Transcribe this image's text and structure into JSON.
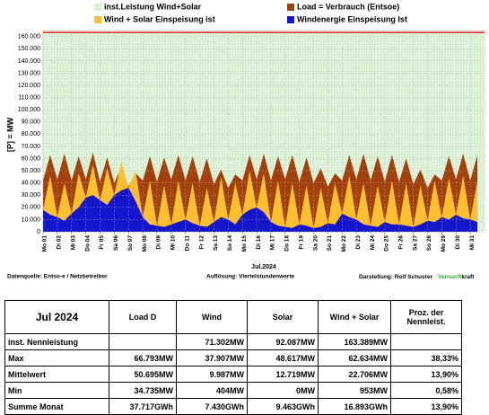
{
  "chart_data": {
    "type": "area",
    "ylabel": "[P] = MW",
    "xlabel": "Jul.2024",
    "xlim": [
      0,
      31
    ],
    "ylim": [
      0,
      165000
    ],
    "grid": true,
    "yticks": [
      0,
      {
        "value": 10000,
        "label": "10.000"
      },
      {
        "value": 20000,
        "label": "20.000"
      },
      {
        "value": 30000,
        "label": "30.000"
      },
      {
        "value": 40000,
        "label": "40.000"
      },
      {
        "value": 50000,
        "label": "50.000"
      },
      {
        "value": 60000,
        "label": "60.000"
      },
      {
        "value": 70000,
        "label": "70.000"
      },
      {
        "value": 80000,
        "label": "80.000"
      },
      {
        "value": 90000,
        "label": "90.000"
      },
      {
        "value": 100000,
        "label": "100.000"
      },
      {
        "value": 110000,
        "label": "110.000"
      },
      {
        "value": 120000,
        "label": "120.000"
      },
      {
        "value": 130000,
        "label": "130.000"
      },
      {
        "value": 140000,
        "label": "140.000"
      },
      {
        "value": 150000,
        "label": "150.000"
      },
      {
        "value": 160000,
        "label": "160.000"
      }
    ],
    "xticks": [
      {
        "value": 0,
        "label": "Mo 01"
      },
      {
        "value": 1,
        "label": "Di 02"
      },
      {
        "value": 2,
        "label": "Mi 03"
      },
      {
        "value": 3,
        "label": "Do 04"
      },
      {
        "value": 4,
        "label": "Fr 05"
      },
      {
        "value": 5,
        "label": "Sa 06"
      },
      {
        "value": 6,
        "label": "So 07"
      },
      {
        "value": 7,
        "label": "Mo 08"
      },
      {
        "value": 8,
        "label": "Di 09"
      },
      {
        "value": 9,
        "label": "Mi 10"
      },
      {
        "value": 10,
        "label": "Do 11"
      },
      {
        "value": 11,
        "label": "Fr 12"
      },
      {
        "value": 12,
        "label": "Sa 13"
      },
      {
        "value": 13,
        "label": "So 14"
      },
      {
        "value": 14,
        "label": "Mo 15"
      },
      {
        "value": 15,
        "label": "Di 16"
      },
      {
        "value": 16,
        "label": "Mi 17"
      },
      {
        "value": 17,
        "label": "Do 18"
      },
      {
        "value": 18,
        "label": "Fr 19"
      },
      {
        "value": 19,
        "label": "Sa 20"
      },
      {
        "value": 20,
        "label": "So 21"
      },
      {
        "value": 21,
        "label": "Mo 22"
      },
      {
        "value": 22,
        "label": "Di 23"
      },
      {
        "value": 23,
        "label": "Mi 24"
      },
      {
        "value": 24,
        "label": "Do 25"
      },
      {
        "value": 25,
        "label": "Fr 26"
      },
      {
        "value": 26,
        "label": "Sa 27"
      },
      {
        "value": 27,
        "label": "So 28"
      },
      {
        "value": 28,
        "label": "Mo 29"
      },
      {
        "value": 29,
        "label": "Di 30"
      },
      {
        "value": 30,
        "label": "Mi 31"
      }
    ],
    "x": [
      0,
      0.5,
      1,
      1.5,
      2,
      2.5,
      3,
      3.5,
      4,
      4.5,
      5,
      5.5,
      6,
      6.5,
      7,
      7.5,
      8,
      8.5,
      9,
      9.5,
      10,
      10.5,
      11,
      11.5,
      12,
      12.5,
      13,
      13.5,
      14,
      14.5,
      15,
      15.5,
      16,
      16.5,
      17,
      17.5,
      18,
      18.5,
      19,
      19.5,
      20,
      20.5,
      21,
      21.5,
      22,
      22.5,
      23,
      23.5,
      24,
      24.5,
      25,
      25.5,
      26,
      26.5,
      27,
      27.5,
      28,
      28.5,
      29,
      29.5,
      30,
      30.5
    ],
    "series": [
      {
        "name": "inst.Leistung Wind+Solar",
        "color": "#d6f0d0",
        "edge_color": "#e02020",
        "x": [
          0,
          31
        ],
        "values": [
          163389,
          163389
        ]
      },
      {
        "name": "Load =  Verbrauch (Entsoe)",
        "color": "#a3410c",
        "values": [
          42000,
          63000,
          43000,
          64000,
          42000,
          62000,
          43000,
          65000,
          41000,
          61000,
          40000,
          53000,
          37000,
          48000,
          42000,
          62000,
          41000,
          61000,
          43000,
          63000,
          42000,
          62000,
          41000,
          60000,
          39000,
          51000,
          36000,
          47000,
          42000,
          63000,
          43000,
          64000,
          42000,
          62000,
          43000,
          63000,
          41000,
          61000,
          40000,
          52000,
          37000,
          48000,
          42000,
          63000,
          43000,
          64000,
          42000,
          62000,
          41000,
          63000,
          41000,
          60000,
          39000,
          51000,
          36000,
          47000,
          42000,
          62000,
          43000,
          64000,
          42000,
          63000
        ]
      },
      {
        "name": "Wind + Solar Einspeisung ist",
        "color": "#ffbf2e",
        "values": [
          18000,
          46000,
          12000,
          40000,
          15000,
          48000,
          28000,
          55000,
          26000,
          52000,
          30000,
          58000,
          36000,
          50000,
          12000,
          42000,
          5000,
          38000,
          6000,
          42000,
          10000,
          40000,
          5000,
          36000,
          8000,
          45000,
          10000,
          40000,
          14000,
          50000,
          20000,
          48000,
          8000,
          42000,
          4000,
          40000,
          6000,
          38000,
          3000,
          36000,
          7000,
          40000,
          15000,
          46000,
          10000,
          40000,
          5000,
          38000,
          8000,
          42000,
          6000,
          40000,
          4000,
          38000,
          9000,
          42000,
          12000,
          44000,
          14000,
          46000,
          10000,
          42000
        ]
      },
      {
        "name": "Windenergie Einspeisung Ist",
        "color": "#1515cc",
        "values": [
          18000,
          14000,
          12000,
          9000,
          15000,
          20000,
          28000,
          30000,
          26000,
          22000,
          30000,
          34000,
          36000,
          25000,
          12000,
          6000,
          5000,
          4000,
          6000,
          8000,
          10000,
          7000,
          5000,
          4000,
          8000,
          12000,
          10000,
          6000,
          14000,
          18000,
          20000,
          16000,
          8000,
          5000,
          4000,
          3000,
          6000,
          5000,
          3000,
          4000,
          7000,
          6000,
          15000,
          12000,
          10000,
          6000,
          5000,
          4000,
          8000,
          6000,
          6000,
          5000,
          4000,
          6000,
          9000,
          8000,
          12000,
          10000,
          14000,
          11000,
          10000,
          8000
        ]
      }
    ]
  },
  "footer": {
    "source": "Datenquelle: Entso-e  / Netzbetreiber",
    "resolution": "Auflösung: Viertelstundenwerte",
    "author": "Darstellung:  Rolf Schuster",
    "brand1": "Vernunft",
    "brand2": "kraft"
  },
  "table": {
    "header": [
      "Jul 2024",
      "Load D",
      "Wind",
      "Solar",
      "Wind + Solar",
      "Proz. der Nennleist."
    ],
    "rows": [
      [
        "inst. Nennleistung",
        null,
        "71.302MW",
        "92.087MW",
        "163.389MW",
        null
      ],
      [
        "Max",
        "66.793MW",
        "37.907MW",
        "48.617MW",
        "62.634MW",
        "38,33%"
      ],
      [
        "Mittelwert",
        "50.695MW",
        "9.987MW",
        "12.719MW",
        "22.706MW",
        "13,90%"
      ],
      [
        "Min",
        "34.735MW",
        "404MW",
        "0MW",
        "953MW",
        "0,58%"
      ],
      [
        "Summe Monat",
        "37.717GWh",
        "7.430GWh",
        "9.463GWh",
        "16.893GWh",
        "13,90%"
      ]
    ]
  }
}
